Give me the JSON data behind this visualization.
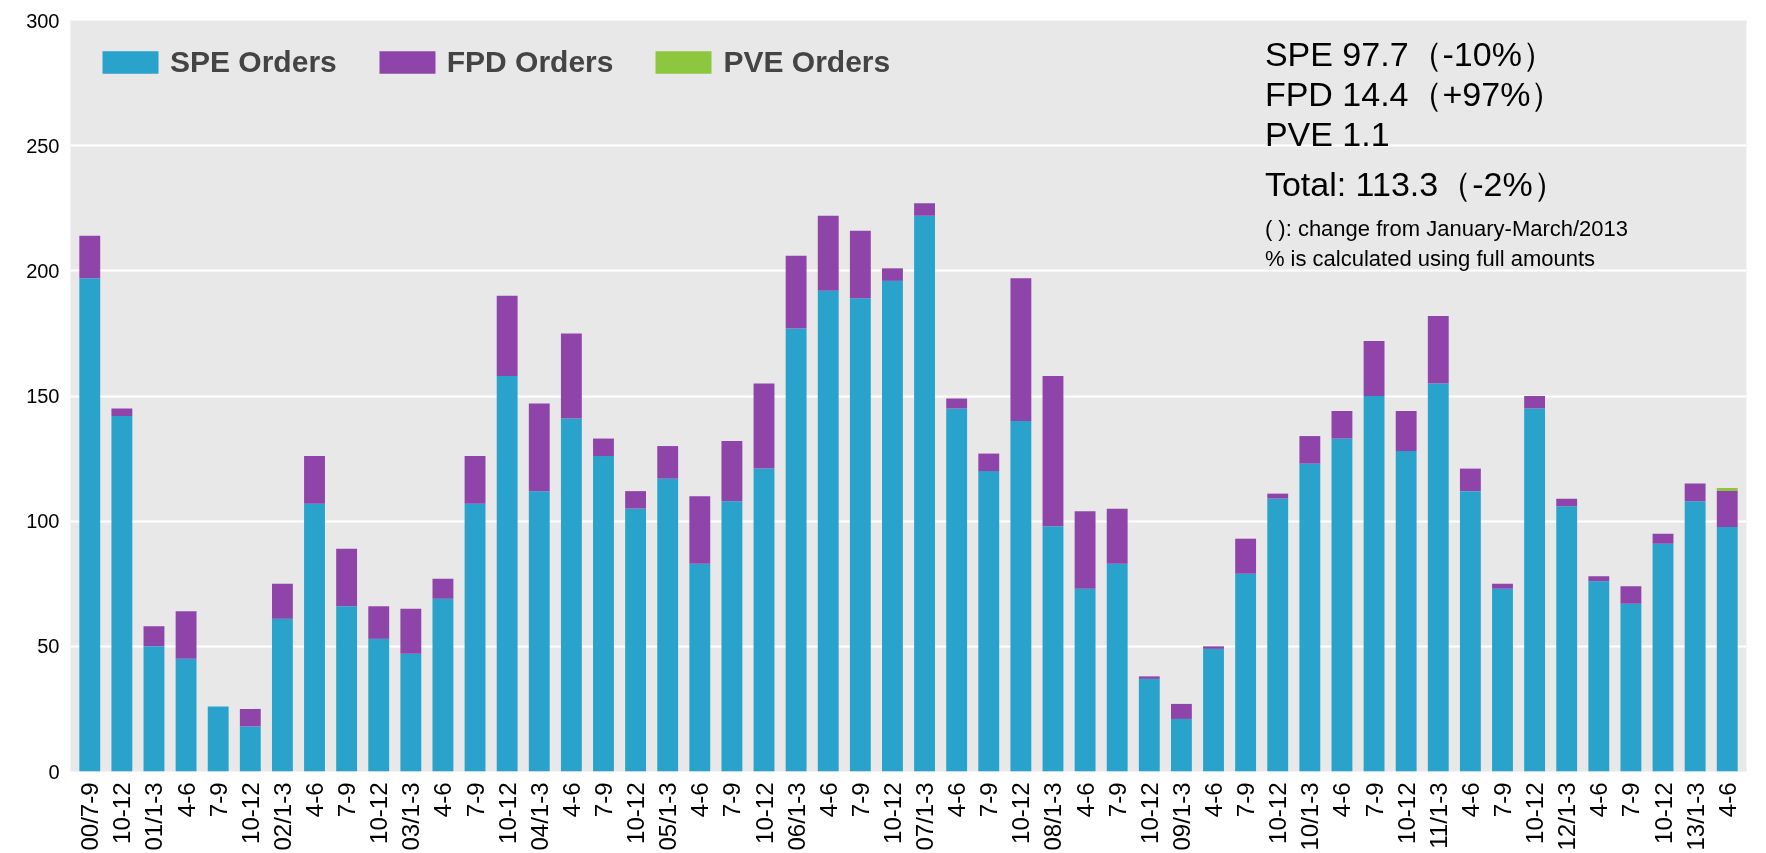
{
  "chart_data": {
    "type": "bar",
    "stacked": true,
    "categories": [
      "00/7-9",
      "10-12",
      "01/1-3",
      "4-6",
      "7-9",
      "10-12",
      "02/1-3",
      "4-6",
      "7-9",
      "10-12",
      "03/1-3",
      "4-6",
      "7-9",
      "10-12",
      "04/1-3",
      "4-6",
      "7-9",
      "10-12",
      "05/1-3",
      "4-6",
      "7-9",
      "10-12",
      "06/1-3",
      "4-6",
      "7-9",
      "10-12",
      "07/1-3",
      "4-6",
      "7-9",
      "10-12",
      "08/1-3",
      "4-6",
      "7-9",
      "10-12",
      "09/1-3",
      "4-6",
      "7-9",
      "10-12",
      "10/1-3",
      "4-6",
      "7-9",
      "10-12",
      "11/1-3",
      "4-6",
      "7-9",
      "10-12",
      "12/1-3",
      "4-6",
      "7-9",
      "10-12",
      "13/1-3",
      "4-6"
    ],
    "series": [
      {
        "name": "SPE Orders",
        "color": "#2aa3cc",
        "values": [
          197,
          142,
          50,
          45,
          26,
          18,
          61,
          107,
          66,
          53,
          47,
          69,
          107,
          158,
          112,
          141,
          126,
          105,
          117,
          83,
          108,
          121,
          177,
          192,
          189,
          196,
          222,
          145,
          120,
          140,
          98,
          73,
          83,
          37,
          21,
          49,
          79,
          109,
          123,
          133,
          150,
          128,
          155,
          112,
          73,
          145,
          106,
          76,
          67,
          91,
          108,
          97.7
        ]
      },
      {
        "name": "FPD Orders",
        "color": "#8e44a8",
        "values": [
          17,
          3,
          8,
          19,
          0,
          7,
          14,
          19,
          23,
          13,
          18,
          8,
          19,
          32,
          35,
          34,
          7,
          7,
          13,
          27,
          24,
          34,
          29,
          30,
          27,
          5,
          5,
          4,
          7,
          57,
          60,
          31,
          22,
          1,
          6,
          1,
          14,
          2,
          11,
          11,
          22,
          16,
          27,
          9,
          2,
          5,
          3,
          2,
          7,
          4,
          7,
          14.4
        ]
      },
      {
        "name": "PVE Orders",
        "color": "#8dc63f",
        "values": [
          null,
          null,
          null,
          null,
          null,
          null,
          null,
          null,
          null,
          null,
          null,
          null,
          null,
          null,
          null,
          null,
          null,
          null,
          null,
          null,
          null,
          null,
          null,
          null,
          null,
          null,
          null,
          null,
          null,
          null,
          null,
          null,
          null,
          null,
          null,
          null,
          null,
          null,
          null,
          null,
          null,
          null,
          null,
          null,
          null,
          null,
          null,
          null,
          null,
          null,
          null,
          1.1
        ]
      }
    ],
    "ylim": [
      0,
      300
    ],
    "yticks": [
      0,
      50,
      100,
      150,
      200,
      250,
      300
    ],
    "grid": "y",
    "legend": "top left",
    "annotations": [
      "SPE              97.7（-10%）",
      "FPD              14.4（+97%）",
      "PVE                1.1",
      "Total:          113.3（-2%）",
      "(     ): change from January-March/2013",
      "% is calculated using full amounts"
    ]
  }
}
